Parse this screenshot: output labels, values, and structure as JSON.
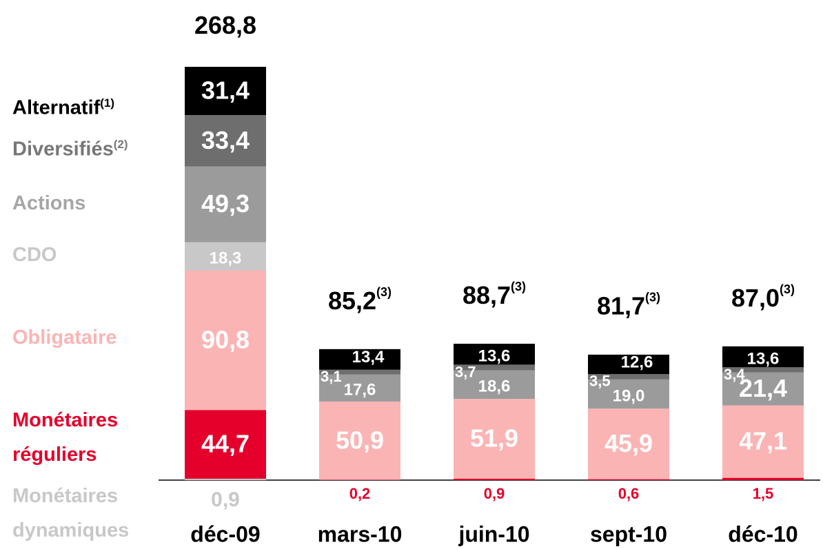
{
  "chart_data": {
    "type": "stacked_bar",
    "categories": [
      "déc-09",
      "mars-10",
      "juin-10",
      "sept-10",
      "déc-10"
    ],
    "ylim": [
      0,
      300
    ],
    "series": [
      {
        "name": "Monétaires dynamiques",
        "color": "#c8c8c8",
        "colors": [
          "#c8c8c8",
          "#e4002b",
          "#e4002b",
          "#e4002b",
          "#e4002b"
        ],
        "values": [
          0.9,
          0.2,
          0.9,
          0.6,
          1.5
        ],
        "value_labels": [
          "0,9",
          "0,2",
          "0,9",
          "0,6",
          "1,5"
        ]
      },
      {
        "name": "Monétaires réguliers",
        "color": "#e4002b",
        "values": [
          44.7,
          null,
          null,
          null,
          null
        ],
        "value_labels": [
          "44,7",
          null,
          null,
          null,
          null
        ]
      },
      {
        "name": "Obligataire",
        "color": "#fbb4b4",
        "values": [
          90.8,
          50.9,
          51.9,
          45.9,
          47.1
        ],
        "value_labels": [
          "90,8",
          "50,9",
          "51,9",
          "45,9",
          "47,1"
        ]
      },
      {
        "name": "CDO",
        "color": "#c8c8c8",
        "values": [
          18.3,
          null,
          null,
          null,
          null
        ],
        "value_labels": [
          "18,3",
          null,
          null,
          null,
          null
        ]
      },
      {
        "name": "Actions",
        "color": "#9b9b9b",
        "values": [
          49.3,
          17.6,
          18.6,
          19.0,
          21.4
        ],
        "value_labels": [
          "49,3",
          "17,6",
          "18,6",
          "19,0",
          "21,4"
        ]
      },
      {
        "name": "Diversifiés",
        "note": "(2)",
        "color": "#6e6e6e",
        "values": [
          33.4,
          3.1,
          3.7,
          3.5,
          3.4
        ],
        "value_labels": [
          "33,4",
          "3,1",
          "3,7",
          "3,5",
          "3,4"
        ]
      },
      {
        "name": "Alternatif",
        "note": "(1)",
        "color": "#000000",
        "values": [
          31.4,
          13.4,
          13.6,
          12.6,
          13.6
        ],
        "value_labels": [
          "31,4",
          "13,4",
          "13,6",
          "12,6",
          "13,6"
        ]
      }
    ],
    "totals": [
      268.8,
      85.2,
      88.7,
      81.7,
      87.0
    ],
    "total_labels": [
      "268,8",
      "85,2",
      "88,7",
      "81,7",
      "87,0"
    ],
    "total_notes": [
      null,
      "(3)",
      "(3)",
      "(3)",
      "(3)"
    ]
  }
}
